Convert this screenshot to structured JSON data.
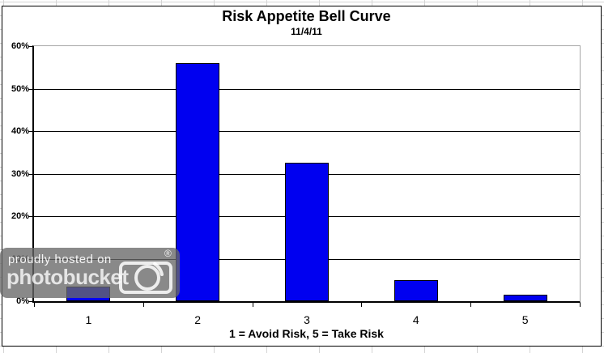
{
  "page": {
    "background": "#ffffff",
    "excel_grid_color": "#d4d4d4"
  },
  "chart_data": {
    "type": "bar",
    "title": "Risk Appetite Bell Curve",
    "subtitle": "11/4/11",
    "categories": [
      "1",
      "2",
      "3",
      "4",
      "5"
    ],
    "values": [
      3.4,
      56,
      32.5,
      5,
      1.5
    ],
    "xlabel": "1 = Avoid Risk, 5 = Take Risk",
    "ylabel": "",
    "ylim": [
      0,
      60
    ],
    "ytick_step": 10,
    "ytick_labels": [
      "0%",
      "10%",
      "20%",
      "30%",
      "40%",
      "50%",
      "60%"
    ],
    "grid": true,
    "legend": "none",
    "bar_color": "#0000f0",
    "bar_border_color": "#000000",
    "axis_color": "#000000",
    "plot_border_color": "#a6a6a6"
  },
  "watermark": {
    "line1": "proudly hosted on",
    "brand": "photobucket",
    "registered_symbol": "®",
    "icon": "camera-icon",
    "background": "rgba(104,104,104,0.78)"
  }
}
